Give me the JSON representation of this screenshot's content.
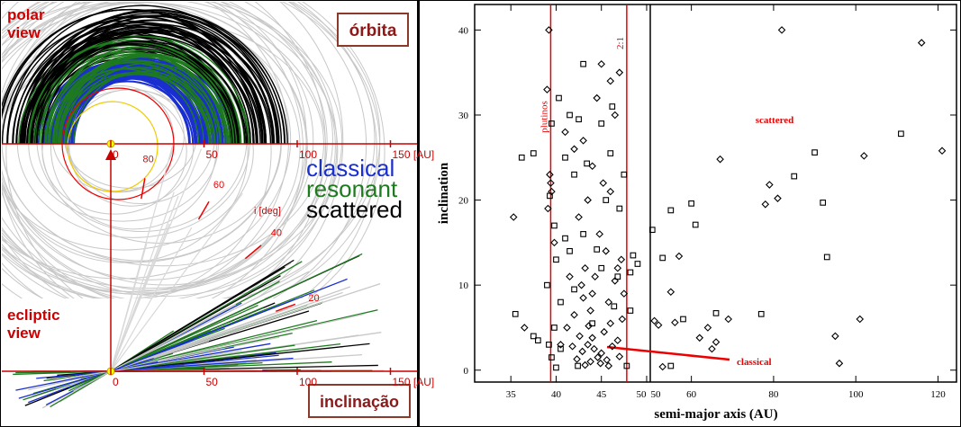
{
  "orbit_figure": {
    "polar_view": [
      "polar",
      "view"
    ],
    "orbit_box": "órbita",
    "ecliptic_view": [
      "ecliptic",
      "view"
    ],
    "inclination_box": "inclinação",
    "legend": [
      {
        "name": "classical",
        "color": "#1a2fd0"
      },
      {
        "name": "resonant",
        "color": "#1e7a1e"
      },
      {
        "name": "scattered",
        "color": "#000000"
      }
    ],
    "xticks": [
      0,
      50,
      100,
      {
        "value": 150,
        "label": "150 [AU]"
      }
    ],
    "iticks": [
      20,
      40,
      60,
      80
    ],
    "ilabel": "i [deg]"
  },
  "chart_data": {
    "type": "scatter",
    "xlabel": "semi-major axis (AU)",
    "ylabel": "inclination",
    "ylim": [
      -1.4,
      43
    ],
    "yticks": [
      0,
      10,
      20,
      30,
      40
    ],
    "xsegments": [
      {
        "xlim": [
          31,
          50.4
        ],
        "xticks": [
          35,
          40,
          45,
          50
        ]
      },
      {
        "xlim": [
          50,
          124.5
        ],
        "xticks": [
          50,
          60,
          80,
          100,
          120
        ]
      }
    ],
    "vlines": [
      {
        "x": 39.4,
        "label": "plutinos"
      },
      {
        "x": 47.8,
        "label": "2:1"
      }
    ],
    "annotations": [
      "scattered",
      "classical"
    ],
    "series": [
      {
        "marker": "diamond",
        "color": "#000000",
        "x": [
          35.3,
          39.2,
          39.0,
          39.5,
          39.4,
          39.3,
          39.1,
          39.8,
          41,
          42,
          43,
          44.5,
          45,
          46,
          47,
          46.5,
          44,
          45.2,
          46,
          43.5,
          42.5,
          44.8,
          45.5,
          43.2,
          41.5,
          42.8,
          44,
          45.8,
          46.5,
          47.2,
          46.8,
          43.8,
          42,
          41.2,
          42.6,
          43.5,
          44.2,
          45,
          44.6,
          43.8,
          45.6,
          46.2,
          46.8,
          42.9,
          43.2,
          44,
          45.3,
          46,
          47.3,
          43.6,
          44.9,
          42.3,
          41.8,
          45.8,
          47,
          43,
          44.3,
          47.5,
          40.5,
          36.5,
          82,
          116,
          121,
          67,
          79,
          78,
          81,
          102,
          57,
          55,
          56,
          64,
          69,
          62,
          66,
          65,
          101,
          95,
          51,
          52,
          96,
          53
        ],
        "values": [
          18,
          40,
          33,
          21,
          22,
          23,
          19,
          15,
          28,
          26,
          27,
          32,
          36,
          34,
          35,
          30,
          24,
          22,
          21,
          20,
          18,
          16,
          14,
          12,
          11,
          10,
          9,
          8,
          10.5,
          13,
          12,
          7,
          6.5,
          5,
          4,
          3,
          2.5,
          2,
          1.5,
          1,
          1.2,
          2.8,
          3.5,
          2.2,
          0.6,
          3.8,
          4.5,
          5.5,
          6,
          5.2,
          0.8,
          1.3,
          2.8,
          0.5,
          1.6,
          8.5,
          11,
          9,
          3,
          5,
          40,
          38.5,
          25.8,
          24.8,
          21.8,
          19.5,
          20.2,
          25.2,
          13.4,
          9.2,
          5.6,
          5,
          6,
          3.8,
          3.3,
          2.5,
          6,
          4,
          5.8,
          5.3,
          0.8,
          0.4
        ]
      },
      {
        "marker": "square",
        "color": "#000000",
        "x": [
          36.2,
          37.5,
          39.5,
          41.5,
          42.5,
          41,
          42,
          46,
          45.5,
          47.5,
          47,
          43,
          41.5,
          45,
          40,
          39,
          40.5,
          41,
          44.5,
          46.8,
          48.5,
          48.2,
          49,
          48.2,
          42,
          44,
          39.8,
          39.2,
          39.5,
          40,
          40.5,
          42.4,
          46.4,
          35.5,
          37.5,
          38,
          43.4,
          45,
          46.2,
          43,
          40.3,
          39.3,
          39.8,
          47.8,
          90,
          111,
          85,
          92,
          60,
          61,
          55,
          50.5,
          53,
          93,
          77,
          66,
          55,
          58
        ],
        "values": [
          25,
          25.5,
          29,
          30,
          29.5,
          25,
          23,
          25.5,
          20,
          23,
          19,
          16,
          14,
          12,
          13,
          10,
          8,
          15.5,
          14.2,
          11,
          13.5,
          11.5,
          12.5,
          7,
          9.5,
          5.5,
          5,
          3,
          1.5,
          0.3,
          2.5,
          0.5,
          7.5,
          6.6,
          4,
          3.5,
          24.3,
          29,
          31,
          36,
          32,
          20.5,
          17,
          0.5,
          25.6,
          27.8,
          22.8,
          19.7,
          19.6,
          17.1,
          18.8,
          16.5,
          13.2,
          13.3,
          6.6,
          6.7,
          0.5,
          6
        ]
      }
    ]
  }
}
